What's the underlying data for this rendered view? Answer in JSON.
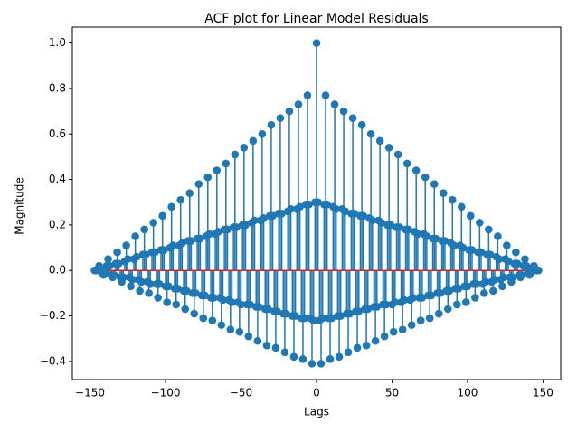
{
  "chart_data": {
    "type": "stem",
    "title": "ACF plot for Linear Model Residuals",
    "x_label": "Lags",
    "y_label": "Magnitude",
    "x": [
      -147,
      -146,
      -145,
      -144,
      -143,
      -142,
      -141,
      -140,
      -139,
      -138,
      -137,
      -136,
      -135,
      -134,
      -133,
      -132,
      -131,
      -130,
      -129,
      -128,
      -127,
      -126,
      -125,
      -124,
      -123,
      -122,
      -121,
      -120,
      -119,
      -118,
      -117,
      -116,
      -115,
      -114,
      -113,
      -112,
      -111,
      -110,
      -109,
      -108,
      -107,
      -106,
      -105,
      -104,
      -103,
      -102,
      -101,
      -100,
      -99,
      -98,
      -97,
      -96,
      -95,
      -94,
      -93,
      -92,
      -91,
      -90,
      -89,
      -88,
      -87,
      -86,
      -85,
      -84,
      -83,
      -82,
      -81,
      -80,
      -79,
      -78,
      -77,
      -76,
      -75,
      -74,
      -73,
      -72,
      -71,
      -70,
      -69,
      -68,
      -67,
      -66,
      -65,
      -64,
      -63,
      -62,
      -61,
      -60,
      -59,
      -58,
      -57,
      -56,
      -55,
      -54,
      -53,
      -52,
      -51,
      -50,
      -49,
      -48,
      -47,
      -46,
      -45,
      -44,
      -43,
      -42,
      -41,
      -40,
      -39,
      -38,
      -37,
      -36,
      -35,
      -34,
      -33,
      -32,
      -31,
      -30,
      -29,
      -28,
      -27,
      -26,
      -25,
      -24,
      -23,
      -22,
      -21,
      -20,
      -19,
      -18,
      -17,
      -16,
      -15,
      -14,
      -13,
      -12,
      -11,
      -10,
      -9,
      -8,
      -7,
      -6,
      -5,
      -4,
      -3,
      -2,
      -1,
      0,
      1,
      2,
      3,
      4,
      5,
      6,
      7,
      8,
      9,
      10,
      11,
      12,
      13,
      14,
      15,
      16,
      17,
      18,
      19,
      20,
      21,
      22,
      23,
      24,
      25,
      26,
      27,
      28,
      29,
      30,
      31,
      32,
      33,
      34,
      35,
      36,
      37,
      38,
      39,
      40,
      41,
      42,
      43,
      44,
      45,
      46,
      47,
      48,
      49,
      50,
      51,
      52,
      53,
      54,
      55,
      56,
      57,
      58,
      59,
      60,
      61,
      62,
      63,
      64,
      65,
      66,
      67,
      68,
      69,
      70,
      71,
      72,
      73,
      74,
      75,
      76,
      77,
      78,
      79,
      80,
      81,
      82,
      83,
      84,
      85,
      86,
      87,
      88,
      89,
      90,
      91,
      92,
      93,
      94,
      95,
      96,
      97,
      98,
      99,
      100,
      101,
      102,
      103,
      104,
      105,
      106,
      107,
      108,
      109,
      110,
      111,
      112,
      113,
      114,
      115,
      116,
      117,
      118,
      119,
      120,
      121,
      122,
      123,
      124,
      125,
      126,
      127,
      128,
      129,
      130,
      131,
      132,
      133,
      134,
      135,
      136,
      137,
      138,
      139,
      140,
      141,
      142,
      143,
      144,
      145,
      146,
      147
    ],
    "values": [
      0,
      0,
      0,
      0.02,
      0.01,
      -0.01,
      -0.02,
      -0.01,
      0.02,
      0.05,
      0.02,
      -0.02,
      -0.03,
      -0.02,
      0.03,
      0.08,
      0.03,
      -0.03,
      -0.05,
      -0.03,
      0.04,
      0.11,
      0.05,
      -0.03,
      -0.07,
      -0.04,
      0.05,
      0.15,
      0.06,
      -0.04,
      -0.09,
      -0.05,
      0.07,
      0.18,
      0.07,
      -0.05,
      -0.1,
      -0.06,
      0.08,
      0.21,
      0.08,
      -0.06,
      -0.12,
      -0.06,
      0.09,
      0.24,
      0.09,
      -0.07,
      -0.14,
      -0.07,
      0.1,
      0.28,
      0.11,
      -0.08,
      -0.15,
      -0.08,
      0.11,
      0.31,
      0.12,
      -0.09,
      -0.17,
      -0.09,
      0.13,
      0.34,
      0.13,
      -0.1,
      -0.19,
      -0.1,
      0.14,
      0.38,
      0.14,
      -0.11,
      -0.21,
      -0.11,
      0.15,
      0.41,
      0.16,
      -0.12,
      -0.22,
      -0.12,
      0.16,
      0.44,
      0.17,
      -0.12,
      -0.24,
      -0.13,
      0.18,
      0.47,
      0.18,
      -0.13,
      -0.26,
      -0.14,
      0.19,
      0.51,
      0.19,
      -0.14,
      -0.27,
      -0.15,
      0.2,
      0.54,
      0.2,
      -0.15,
      -0.29,
      -0.15,
      0.21,
      0.57,
      0.22,
      -0.16,
      -0.31,
      -0.16,
      0.22,
      0.6,
      0.23,
      -0.17,
      -0.33,
      -0.17,
      0.24,
      0.64,
      0.24,
      -0.18,
      -0.34,
      -0.18,
      0.25,
      0.67,
      0.25,
      -0.19,
      -0.36,
      -0.19,
      0.26,
      0.7,
      0.27,
      -0.2,
      -0.38,
      -0.2,
      0.27,
      0.73,
      0.28,
      -0.21,
      -0.39,
      -0.21,
      0.29,
      0.77,
      0.29,
      -0.21,
      -0.41,
      -0.22,
      0.3,
      1.0,
      0.3,
      -0.22,
      -0.41,
      -0.21,
      0.29,
      0.77,
      0.29,
      -0.21,
      -0.39,
      -0.21,
      0.28,
      0.73,
      0.27,
      -0.2,
      -0.38,
      -0.2,
      0.27,
      0.7,
      0.26,
      -0.19,
      -0.36,
      -0.19,
      0.25,
      0.67,
      0.25,
      -0.18,
      -0.34,
      -0.18,
      0.24,
      0.64,
      0.24,
      -0.17,
      -0.33,
      -0.17,
      0.23,
      0.6,
      0.22,
      -0.16,
      -0.31,
      -0.16,
      0.22,
      0.57,
      0.21,
      -0.15,
      -0.29,
      -0.15,
      0.2,
      0.54,
      0.2,
      -0.15,
      -0.27,
      -0.14,
      0.19,
      0.51,
      0.19,
      -0.14,
      -0.26,
      -0.13,
      0.18,
      0.47,
      0.18,
      -0.13,
      -0.24,
      -0.12,
      0.17,
      0.44,
      0.16,
      -0.12,
      -0.22,
      -0.12,
      0.16,
      0.41,
      0.15,
      -0.11,
      -0.21,
      -0.11,
      0.14,
      0.38,
      0.14,
      -0.1,
      -0.19,
      -0.1,
      0.13,
      0.34,
      0.13,
      -0.09,
      -0.17,
      -0.09,
      0.12,
      0.31,
      0.11,
      -0.08,
      -0.15,
      -0.08,
      0.11,
      0.28,
      0.1,
      -0.07,
      -0.14,
      -0.07,
      0.09,
      0.24,
      0.09,
      -0.06,
      -0.12,
      -0.06,
      0.08,
      0.21,
      0.08,
      -0.06,
      -0.1,
      -0.05,
      0.07,
      0.18,
      0.07,
      -0.05,
      -0.09,
      -0.04,
      0.06,
      0.15,
      0.05,
      -0.04,
      -0.07,
      -0.03,
      0.05,
      0.11,
      0.04,
      -0.03,
      -0.05,
      -0.03,
      0.03,
      0.08,
      0.03,
      -0.02,
      -0.03,
      -0.02,
      0.02,
      0.05,
      0.02,
      -0.01,
      -0.02,
      -0.01,
      0.01,
      0.02,
      0,
      0,
      0
    ],
    "color": "#1f77b4",
    "baseline_color": "#d62728",
    "xlim": [
      -161.7,
      161.7
    ],
    "xticks": [
      {
        "value": -150,
        "label": "−150"
      },
      {
        "value": -100,
        "label": "−100"
      },
      {
        "value": -50,
        "label": "−50"
      },
      0,
      50,
      100,
      150
    ],
    "ylim": [
      -0.48,
      1.07
    ],
    "yticks": [
      {
        "value": -0.4,
        "label": "−0.4"
      },
      {
        "value": -0.2,
        "label": "−0.2"
      },
      {
        "value": 0,
        "label": "0.0"
      },
      {
        "value": 0.2,
        "label": "0.2"
      },
      {
        "value": 0.4,
        "label": "0.4"
      },
      {
        "value": 0.6,
        "label": "0.6"
      },
      {
        "value": 0.8,
        "label": "0.8"
      },
      {
        "value": 1,
        "label": "1.0"
      }
    ]
  }
}
